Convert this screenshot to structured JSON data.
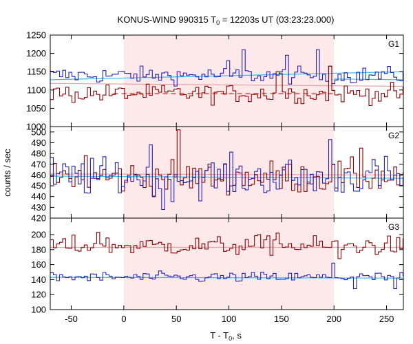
{
  "chart_data": {
    "type": "line",
    "title_prefix": "KONUS-WIND 990315 T",
    "title_sub": "0",
    "title_suffix": " = 12203s UT (03:23:23.000)",
    "ylabel": "counts / sec",
    "xlabel_prefix": "T - T",
    "xlabel_sub": "0",
    "xlabel_suffix": ", s",
    "xlim": [
      -70,
      266
    ],
    "xticks": [
      -50,
      0,
      50,
      100,
      150,
      200,
      250
    ],
    "shaded_interval": [
      0,
      200
    ],
    "colors": {
      "shade": "#fde9ea",
      "red": "#8b0000",
      "blue": "#2222bb",
      "red_fit": "#e8a0a6",
      "blue_fit": "#33bbee",
      "red_dash": "#cc2222"
    },
    "panels": [
      {
        "name": "G1",
        "ylim": [
          1000,
          1250
        ],
        "yticks": [
          1000,
          1050,
          1100,
          1150,
          1200,
          1250
        ],
        "series": [
          {
            "color": "blue",
            "base": 1140,
            "amp": 16,
            "spikes": {
              "100": 1180,
              "115": 1210,
              "155": 1195,
              "185": 1210,
              "195": 1165
            }
          },
          {
            "color": "red",
            "base": 1090,
            "amp": 18,
            "spikes": {
              "145": 1150,
              "150": 1145,
              "195": 1165
            }
          }
        ],
        "fits": [
          {
            "color": "blue_fit",
            "from": -70,
            "to": 266,
            "y0": 1128,
            "y1": 1150
          },
          {
            "color": "blue_fit",
            "from": 200,
            "to": 266,
            "y0": 1130,
            "y1": 1128
          },
          {
            "color": "red_fit",
            "from": -70,
            "to": 266,
            "y0": 1118,
            "y1": 1110
          }
        ],
        "dashed": [
          {
            "color": "red_dash",
            "from": -10,
            "to": 200,
            "y": 1090
          }
        ]
      },
      {
        "name": "G2",
        "ylim": [
          420,
          505
        ],
        "yticks": [
          420,
          430,
          440,
          450,
          460,
          470,
          480,
          490,
          500
        ],
        "series": [
          {
            "color": "red",
            "base": 458,
            "amp": 11,
            "spikes": {
              "52": 502,
              "-35": 478,
              "225": 485
            }
          },
          {
            "color": "blue",
            "base": 458,
            "amp": 13,
            "spikes": {
              "27": 488,
              "195": 493,
              "37": 428
            }
          }
        ],
        "fits": [
          {
            "color": "red_fit",
            "from": -70,
            "to": 266,
            "y0": 461,
            "y1": 460
          },
          {
            "color": "blue_fit",
            "from": -70,
            "to": 266,
            "y0": 459,
            "y1": 457
          }
        ],
        "dashed": []
      },
      {
        "name": "G3",
        "ylim": [
          100,
          222
        ],
        "yticks": [
          100,
          120,
          140,
          160,
          180,
          200
        ],
        "series": [
          {
            "color": "red",
            "base": 185,
            "amp": 9,
            "spikes": {
              "-25": 203,
              "130": 200,
              "145": 202,
              "205": 168
            }
          },
          {
            "color": "blue",
            "base": 143,
            "amp": 5,
            "spikes": {
              "200": 162,
              "220": 128,
              "258": 128
            }
          }
        ],
        "fits": [
          {
            "color": "red_fit",
            "from": -70,
            "to": 266,
            "y0": 183,
            "y1": 183
          },
          {
            "color": "blue_fit",
            "from": -70,
            "to": 266,
            "y0": 143,
            "y1": 142
          }
        ],
        "dashed": []
      }
    ]
  }
}
